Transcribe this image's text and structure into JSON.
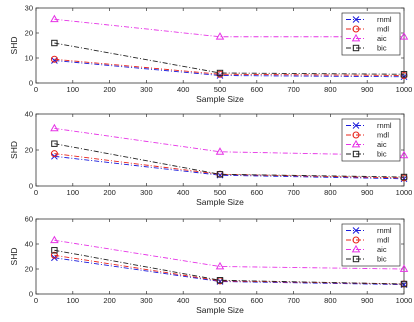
{
  "colors": {
    "rnml": "#1a1adb",
    "mdl": "#e8231a",
    "aic": "#e632e6",
    "bic": "#222222"
  },
  "chart_data": [
    {
      "type": "line",
      "xlabel": "Sample Size",
      "ylabel": "SHD",
      "xlim": [
        0,
        1000
      ],
      "ylim": [
        0,
        30
      ],
      "xticks": [
        0,
        100,
        200,
        300,
        400,
        500,
        600,
        700,
        800,
        900,
        1000
      ],
      "yticks": [
        0,
        10,
        20,
        30
      ],
      "x": [
        50,
        500,
        1000
      ],
      "legend_position": "top-right",
      "series": [
        {
          "name": "rnml",
          "marker": "x",
          "dash": "dashdot",
          "values": [
            9,
            3,
            2.5
          ]
        },
        {
          "name": "mdl",
          "marker": "o",
          "dash": "dashdot",
          "values": [
            9.5,
            3.5,
            3
          ]
        },
        {
          "name": "aic",
          "marker": "triangle",
          "dash": "dashdot",
          "values": [
            25.5,
            18.5,
            18.5
          ]
        },
        {
          "name": "bic",
          "marker": "square",
          "dash": "dashdot",
          "values": [
            16,
            4,
            3.5
          ]
        }
      ]
    },
    {
      "type": "line",
      "xlabel": "Sample Size",
      "ylabel": "SHD",
      "xlim": [
        0,
        1000
      ],
      "ylim": [
        0,
        40
      ],
      "xticks": [
        0,
        100,
        200,
        300,
        400,
        500,
        600,
        700,
        800,
        900,
        1000
      ],
      "yticks": [
        0,
        20,
        40
      ],
      "x": [
        50,
        500,
        1000
      ],
      "legend_position": "top-right",
      "series": [
        {
          "name": "rnml",
          "marker": "x",
          "dash": "dashdot",
          "values": [
            16.5,
            6,
            4
          ]
        },
        {
          "name": "mdl",
          "marker": "o",
          "dash": "dashdot",
          "values": [
            18,
            6.5,
            4.5
          ]
        },
        {
          "name": "aic",
          "marker": "triangle",
          "dash": "dashdot",
          "values": [
            32,
            19,
            17
          ]
        },
        {
          "name": "bic",
          "marker": "square",
          "dash": "dashdot",
          "values": [
            23.5,
            6.5,
            5
          ]
        }
      ]
    },
    {
      "type": "line",
      "xlabel": "Sample Size",
      "ylabel": "SHD",
      "xlim": [
        0,
        1000
      ],
      "ylim": [
        0,
        60
      ],
      "xticks": [
        0,
        100,
        200,
        300,
        400,
        500,
        600,
        700,
        800,
        900,
        1000
      ],
      "yticks": [
        0,
        20,
        40,
        60
      ],
      "x": [
        50,
        500,
        1000
      ],
      "legend_position": "top-right",
      "series": [
        {
          "name": "rnml",
          "marker": "x",
          "dash": "dashdot",
          "values": [
            29,
            10,
            7.5
          ]
        },
        {
          "name": "mdl",
          "marker": "o",
          "dash": "dashdot",
          "values": [
            31,
            10.5,
            8
          ]
        },
        {
          "name": "aic",
          "marker": "triangle",
          "dash": "dashdot",
          "values": [
            43,
            22,
            20
          ]
        },
        {
          "name": "bic",
          "marker": "square",
          "dash": "dashdot",
          "values": [
            35,
            11,
            8
          ]
        }
      ]
    }
  ]
}
